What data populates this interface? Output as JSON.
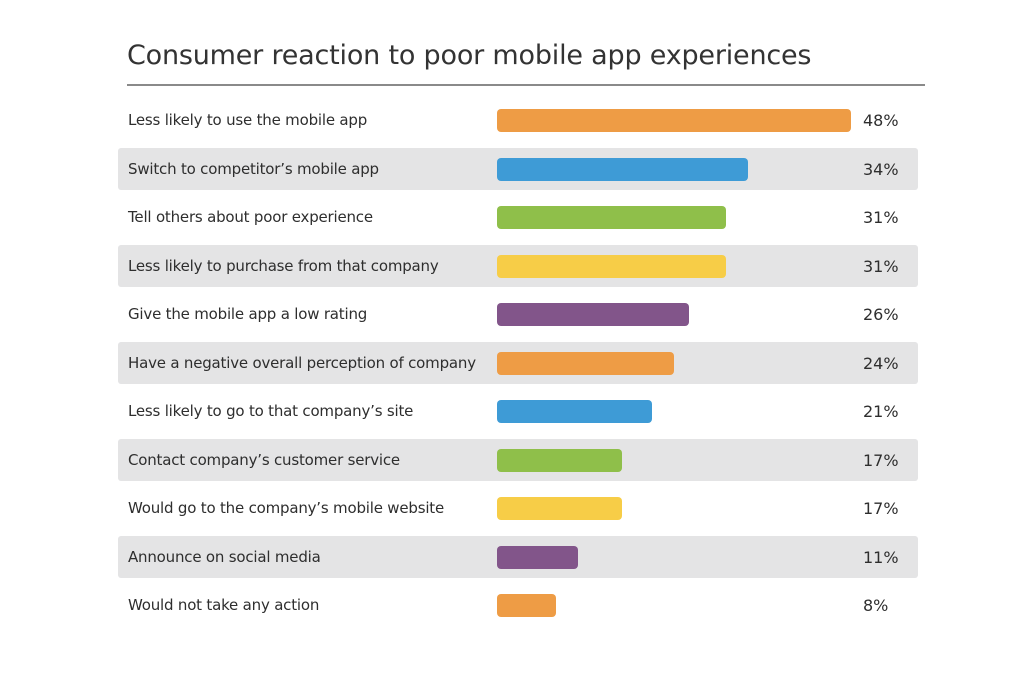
{
  "chart_data": {
    "type": "bar",
    "orientation": "horizontal",
    "title": "Consumer reaction to poor mobile app experiences",
    "xlabel": "",
    "ylabel": "",
    "xlim": [
      0,
      48
    ],
    "grid": false,
    "categories": [
      "Less likely to use the mobile app",
      "Switch to competitor’s mobile app",
      "Tell others about poor experience",
      "Less likely to purchase from that company",
      "Give the mobile app a low rating",
      "Have a negative overall perception of company",
      "Less likely to go to that company’s site",
      "Contact company’s customer service",
      "Would go to the company’s mobile website",
      "Announce on social media",
      "Would not take any action"
    ],
    "values": [
      48,
      34,
      31,
      31,
      26,
      24,
      21,
      17,
      17,
      11,
      8
    ],
    "value_labels": [
      "48%",
      "34%",
      "31%",
      "31%",
      "26%",
      "24%",
      "21%",
      "17%",
      "17%",
      "11%",
      "8%"
    ],
    "bar_colors": [
      "#ee9c45",
      "#3e9bd6",
      "#8fbf4a",
      "#f7cd47",
      "#82558a",
      "#ee9c45",
      "#3e9bd6",
      "#8fbf4a",
      "#f7cd47",
      "#82558a",
      "#ee9c45"
    ],
    "row_shading": [
      false,
      true,
      false,
      true,
      false,
      true,
      false,
      true,
      false,
      true,
      false
    ],
    "row_shade_color": "#e4e4e5"
  }
}
